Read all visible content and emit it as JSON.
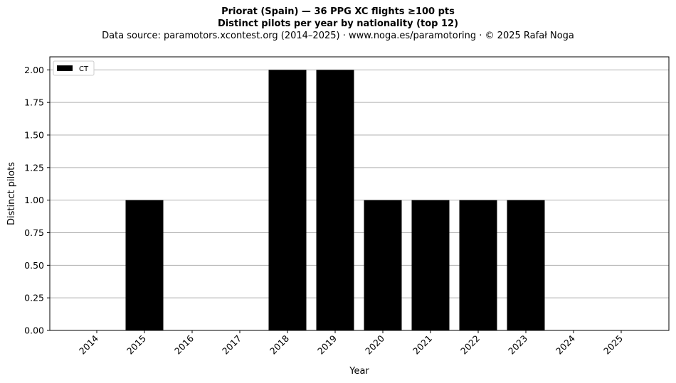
{
  "header": {
    "title_line1": "Priorat (Spain)  —  36 PPG XC flights ≥100 pts",
    "title_line2": "Distinct pilots per year by nationality (top 12)",
    "source_line": "Data source: paramotors.xcontest.org (2014–2025)  ·  www.noga.es/paramotoring  ·  © 2025 Rafał Noga"
  },
  "chart_data": {
    "type": "bar",
    "categories": [
      "2014",
      "2015",
      "2016",
      "2017",
      "2018",
      "2019",
      "2020",
      "2021",
      "2022",
      "2023",
      "2024",
      "2025"
    ],
    "series": [
      {
        "name": "CT",
        "color": "#000000",
        "values": [
          0,
          1,
          0,
          0,
          2,
          2,
          1,
          1,
          1,
          1,
          0,
          0
        ]
      }
    ],
    "xlabel": "Year",
    "ylabel": "Distinct pilots",
    "ylim": [
      0,
      2.1
    ],
    "yticks": [
      "0.00",
      "0.25",
      "0.50",
      "0.75",
      "1.00",
      "1.25",
      "1.50",
      "1.75",
      "2.00"
    ],
    "grid": "y",
    "grid_color": "#b0b0b0",
    "legend_position": "top-left",
    "xtick_rotation": "45°"
  }
}
